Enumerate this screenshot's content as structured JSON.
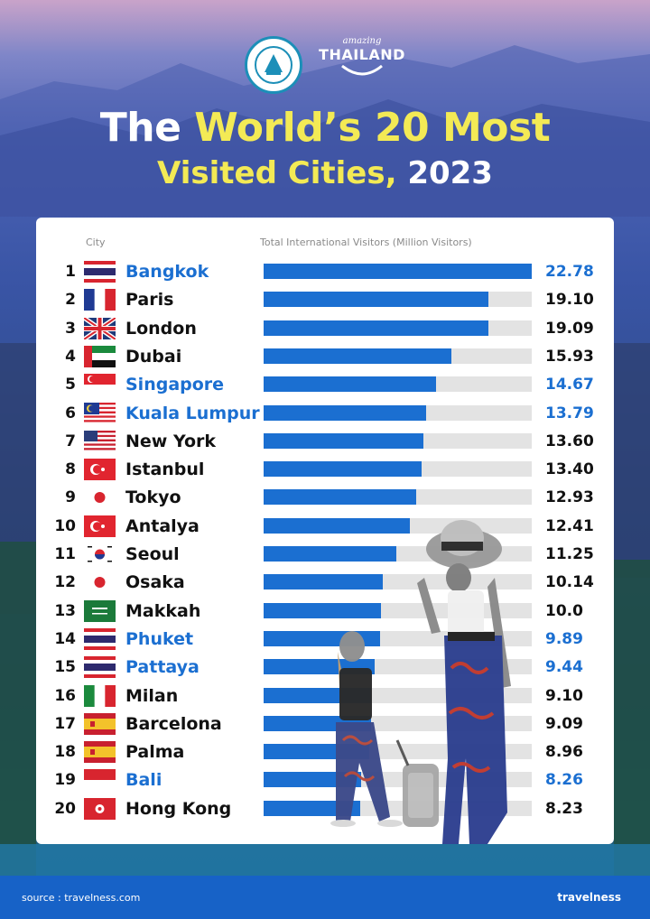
{
  "logo": {
    "tat_icon": "tat-emblem-icon",
    "amazing_small": "amazing",
    "amazing_big": "THAILAND"
  },
  "title": {
    "line1_a": "The ",
    "line1_b": "World’s 20 Most",
    "line2_a": "Visited Cities, ",
    "line2_b": "2023"
  },
  "colors": {
    "bar": "#1b6fd1",
    "track": "#e3e3e3",
    "thai_highlight": "#1b6fd1",
    "title_highlight": "#f3ea55",
    "footer": "#1762c7"
  },
  "chart_data": {
    "type": "bar",
    "orientation": "horizontal",
    "xlabel": "Total International Visitors (Million Visitors)",
    "category_header": "City",
    "xlim": [
      0,
      22.78
    ],
    "rows": [
      {
        "rank": "1",
        "city": "Bangkok",
        "value": 22.78,
        "label": "22.78",
        "flag": "thailand-flag",
        "highlight": true
      },
      {
        "rank": "2",
        "city": "Paris",
        "value": 19.1,
        "label": "19.10",
        "flag": "france-flag",
        "highlight": false
      },
      {
        "rank": "3",
        "city": "London",
        "value": 19.09,
        "label": "19.09",
        "flag": "uk-flag",
        "highlight": false
      },
      {
        "rank": "4",
        "city": "Dubai",
        "value": 15.93,
        "label": "15.93",
        "flag": "uae-flag",
        "highlight": false
      },
      {
        "rank": "5",
        "city": "Singapore",
        "value": 14.67,
        "label": "14.67",
        "flag": "singapore-flag",
        "highlight": true
      },
      {
        "rank": "6",
        "city": "Kuala Lumpur",
        "value": 13.79,
        "label": "13.79",
        "flag": "malaysia-flag",
        "highlight": true
      },
      {
        "rank": "7",
        "city": "New York",
        "value": 13.6,
        "label": "13.60",
        "flag": "usa-flag",
        "highlight": false
      },
      {
        "rank": "8",
        "city": "Istanbul",
        "value": 13.4,
        "label": "13.40",
        "flag": "turkey-flag",
        "highlight": false
      },
      {
        "rank": "9",
        "city": "Tokyo",
        "value": 12.93,
        "label": "12.93",
        "flag": "japan-flag",
        "highlight": false
      },
      {
        "rank": "10",
        "city": "Antalya",
        "value": 12.41,
        "label": "12.41",
        "flag": "turkey-flag",
        "highlight": false
      },
      {
        "rank": "11",
        "city": "Seoul",
        "value": 11.25,
        "label": "11.25",
        "flag": "south-korea-flag",
        "highlight": false
      },
      {
        "rank": "12",
        "city": "Osaka",
        "value": 10.14,
        "label": "10.14",
        "flag": "japan-flag",
        "highlight": false
      },
      {
        "rank": "13",
        "city": "Makkah",
        "value": 10.0,
        "label": "10.0",
        "flag": "saudi-arabia-flag",
        "highlight": false
      },
      {
        "rank": "14",
        "city": "Phuket",
        "value": 9.89,
        "label": "9.89",
        "flag": "thailand-flag",
        "highlight": true
      },
      {
        "rank": "15",
        "city": "Pattaya",
        "value": 9.44,
        "label": "9.44",
        "flag": "thailand-flag",
        "highlight": true
      },
      {
        "rank": "16",
        "city": "Milan",
        "value": 9.1,
        "label": "9.10",
        "flag": "italy-flag",
        "highlight": false
      },
      {
        "rank": "17",
        "city": "Barcelona",
        "value": 9.09,
        "label": "9.09",
        "flag": "spain-flag",
        "highlight": false
      },
      {
        "rank": "18",
        "city": "Palma",
        "value": 8.96,
        "label": "8.96",
        "flag": "spain-flag",
        "highlight": false
      },
      {
        "rank": "19",
        "city": "Bali",
        "value": 8.26,
        "label": "8.26",
        "flag": "indonesia-flag",
        "highlight": true
      },
      {
        "rank": "20",
        "city": "Hong Kong",
        "value": 8.23,
        "label": "8.23",
        "flag": "hong-kong-flag",
        "highlight": false
      }
    ]
  },
  "illustration": {
    "icon": "travelers-with-luggage-icon"
  },
  "footer": {
    "source": "source : travelness.com",
    "brand": "travelness"
  }
}
